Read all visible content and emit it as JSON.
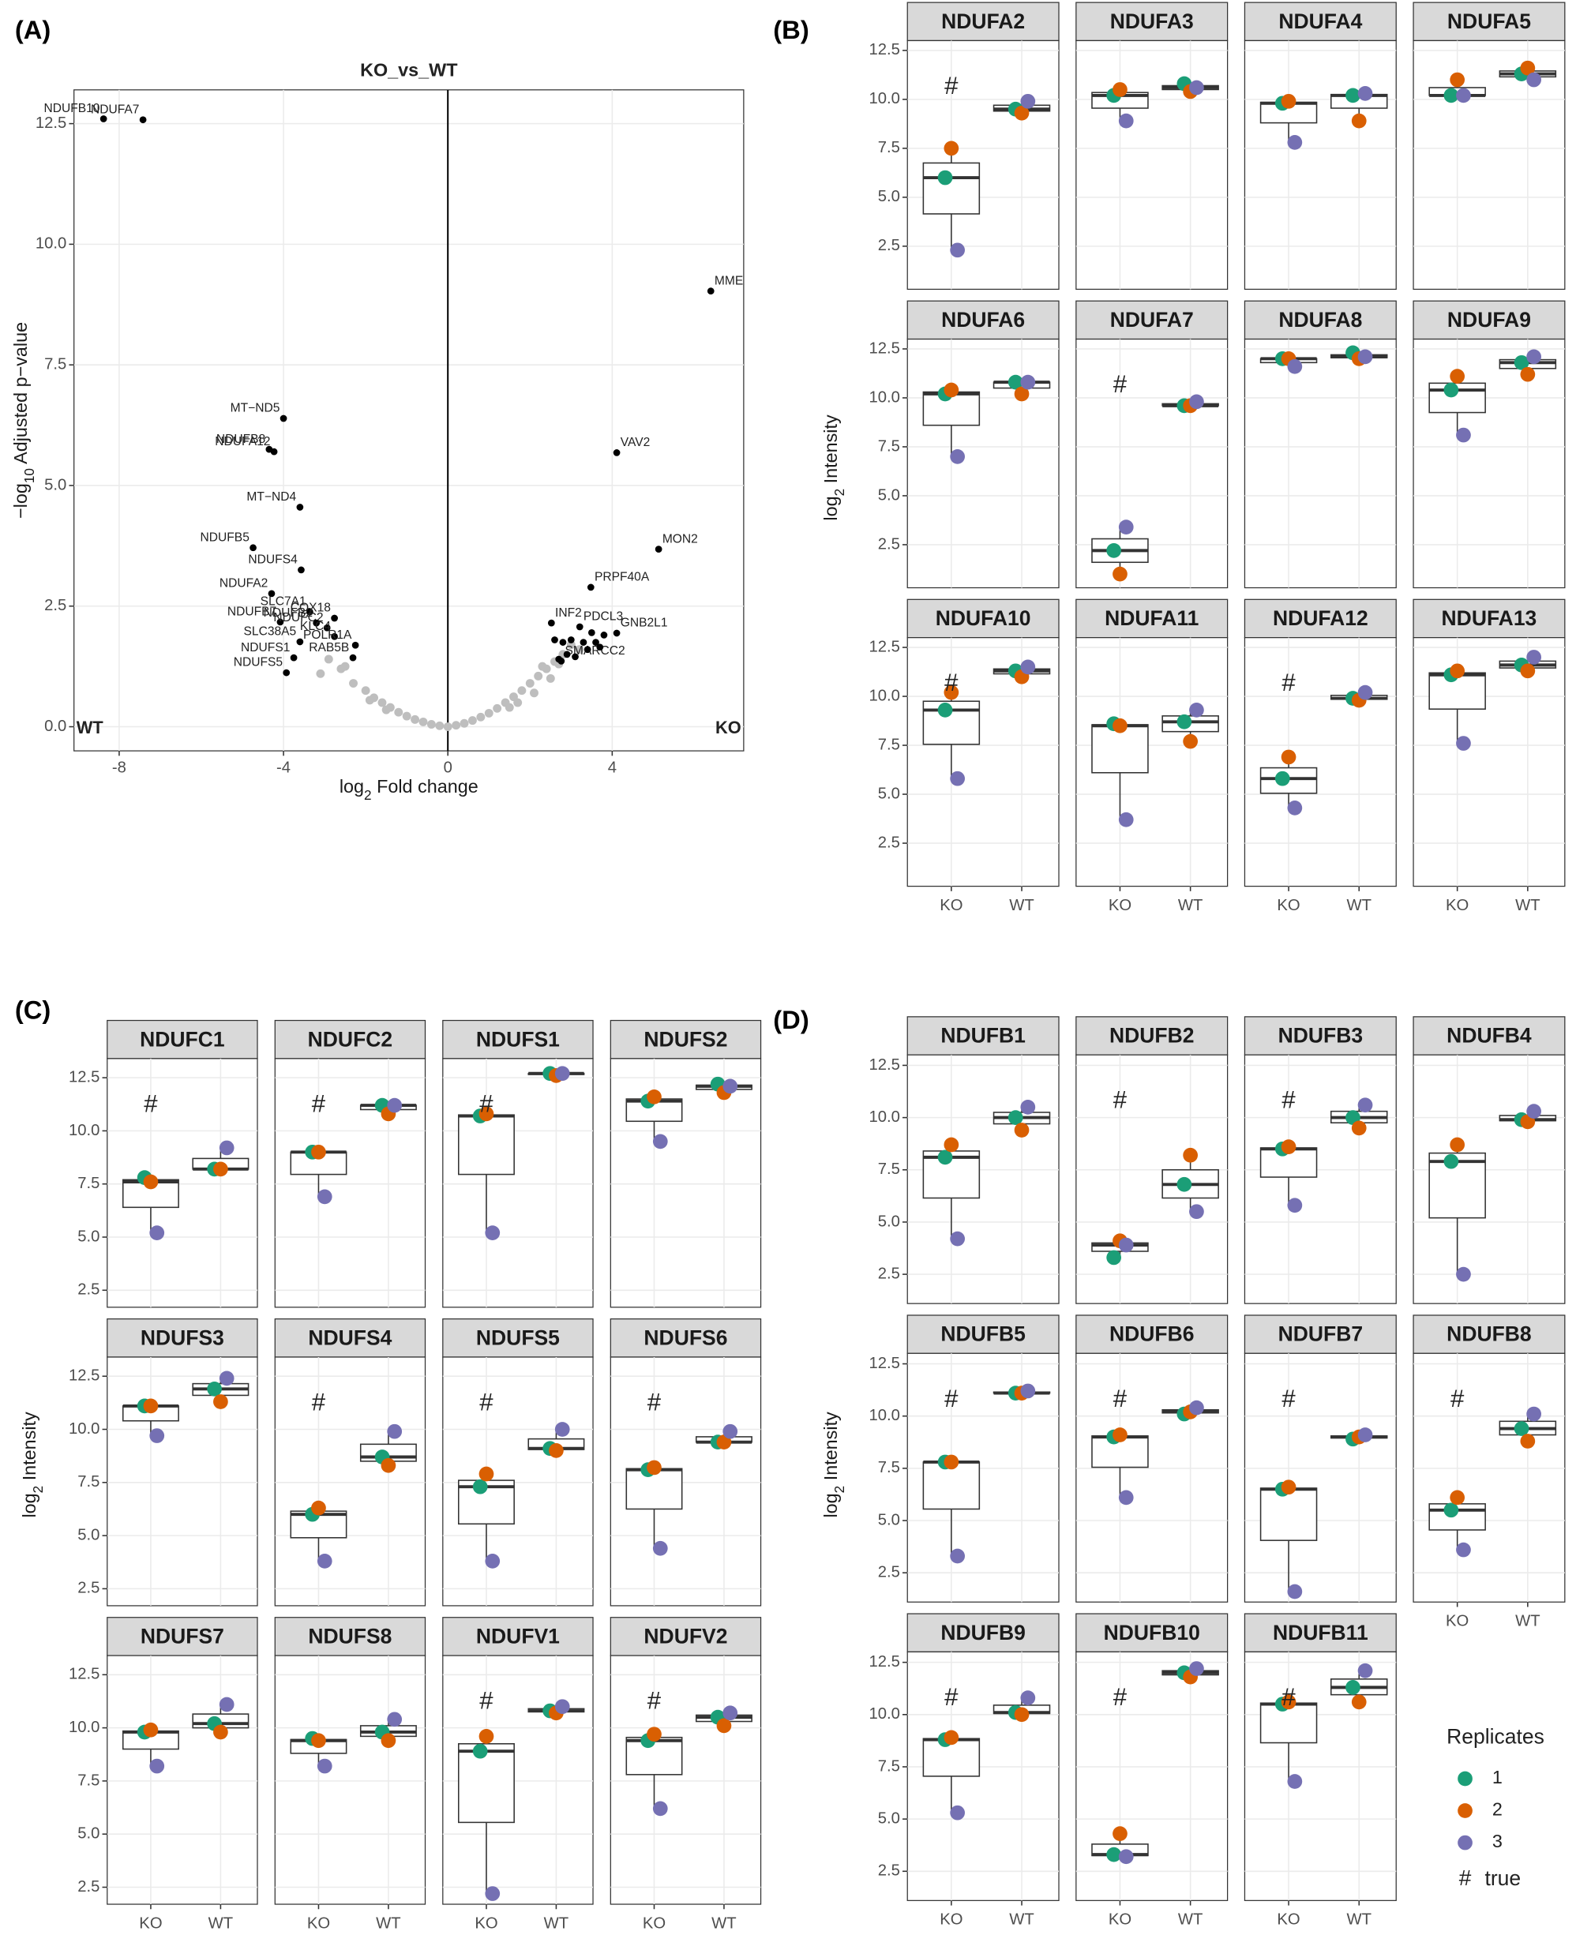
{
  "replicates": {
    "title": "Replicates",
    "names": [
      "1",
      "2",
      "3"
    ],
    "colors": [
      "#1b9e77",
      "#d95f02",
      "#7570b3"
    ],
    "hash": "#",
    "hash_label": "true",
    "hash_color": "#ff0000"
  },
  "chart_data": [
    {
      "type": "scatter",
      "panel_label": "(A)",
      "title": "KO_vs_WT",
      "xlabel": {
        "text": "log",
        "sub": "2",
        "rest": " Fold change"
      },
      "ylabel": {
        "text": "−log",
        "sub": "10",
        "rest": " Adjusted p−value"
      },
      "corner_labels": [
        "WT",
        "KO"
      ],
      "vline": 0,
      "xlim": [
        -9.1,
        7.2
      ],
      "ylim": [
        -0.5,
        13.2
      ],
      "xticks": [
        -8,
        -4,
        0,
        4
      ],
      "yticks": [
        {
          "value": 0,
          "label": "0.0"
        },
        2.5,
        {
          "value": 5,
          "label": "5.0"
        },
        7.5,
        {
          "value": 10,
          "label": "10.0"
        },
        12.5
      ],
      "grid": true,
      "series": [
        {
          "color": "#bebebe",
          "x": [
            -3.1,
            -2.9,
            -2.6,
            -2.5,
            -2.3,
            -2.0,
            -1.9,
            -1.8,
            -1.6,
            -1.5,
            -1.4,
            -1.2,
            -1.0,
            -0.8,
            -0.6,
            -0.4,
            -0.2,
            0.0,
            0.2,
            0.4,
            0.6,
            0.8,
            1.0,
            1.2,
            1.4,
            1.5,
            1.6,
            1.7,
            1.8,
            2.0,
            2.1,
            2.2,
            2.3,
            2.4,
            2.5,
            2.6,
            2.7,
            2.8,
            3.0,
            3.2
          ],
          "values": [
            1.1,
            1.4,
            1.2,
            1.25,
            0.9,
            0.75,
            0.55,
            0.6,
            0.5,
            0.35,
            0.4,
            0.3,
            0.22,
            0.15,
            0.1,
            0.05,
            0.02,
            0.0,
            0.03,
            0.07,
            0.13,
            0.2,
            0.28,
            0.38,
            0.5,
            0.4,
            0.62,
            0.5,
            0.75,
            0.9,
            0.7,
            1.05,
            1.25,
            1.2,
            1.0,
            1.35,
            1.3,
            1.5,
            1.7,
            1.6
          ]
        },
        {
          "color": "#000000",
          "labels": [
            "NDUFB10",
            "NDUFA7",
            "MME",
            "MT−ND5",
            "NDUFB8",
            "NDUFA12",
            "VAV2",
            "MT−ND4",
            "NDUFB5",
            "MON2",
            "NDUFS4",
            "NDUFA2",
            "PRPF40A",
            "SLC7A1",
            "COX18",
            "NDUFB7",
            "NDUFC2",
            "NDUFB2",
            "PDCL3",
            "INF2",
            "GNB2L1",
            "SLC38A5",
            "KLC4",
            "POLR1A",
            "NDUFS1",
            "RAB5B",
            "NDUFS5",
            "SMARCC2",
            null,
            null,
            null,
            null,
            null,
            null,
            null,
            null,
            null,
            null,
            null,
            null
          ],
          "x": [
            -8.38,
            -7.42,
            6.4,
            -4.0,
            -4.35,
            -4.23,
            4.11,
            -3.6,
            -4.74,
            5.13,
            -3.57,
            -4.29,
            3.48,
            -3.36,
            -2.76,
            -4.08,
            -2.94,
            -3.2,
            3.21,
            2.52,
            4.11,
            -3.6,
            -2.76,
            -2.25,
            -3.75,
            -2.31,
            -3.93,
            2.76,
            2.6,
            2.8,
            3.0,
            3.3,
            3.6,
            3.8,
            3.7,
            3.4,
            2.9,
            3.1,
            2.7,
            3.5
          ],
          "values": [
            12.6,
            12.58,
            9.03,
            6.39,
            5.75,
            5.7,
            5.68,
            4.55,
            3.71,
            3.68,
            3.25,
            2.76,
            2.89,
            2.38,
            2.25,
            2.17,
            2.05,
            2.15,
            2.07,
            2.15,
            1.94,
            1.76,
            1.87,
            1.69,
            1.43,
            1.43,
            1.12,
            1.36,
            1.8,
            1.75,
            1.8,
            1.75,
            1.75,
            1.9,
            1.65,
            1.6,
            1.5,
            1.45,
            1.4,
            1.95
          ]
        }
      ]
    },
    {
      "type": "box",
      "panel_label": "(B)",
      "ylabel": {
        "text": "log",
        "sub": "2",
        "rest": " Intensity"
      },
      "categories": [
        "KO",
        "WT"
      ],
      "ylim": [
        0.3,
        13.0
      ],
      "yticks": [
        2.5,
        {
          "value": 5,
          "label": "5.0"
        },
        7.5,
        {
          "value": 10,
          "label": "10.0"
        },
        12.5
      ],
      "grid": true,
      "facets": [
        {
          "title": "NDUFA2",
          "hash": true,
          "groups": [
            [
              6.0,
              7.5,
              2.3
            ],
            [
              9.5,
              9.3,
              9.9
            ]
          ]
        },
        {
          "title": "NDUFA3",
          "hash": false,
          "groups": [
            [
              10.2,
              10.5,
              8.9
            ],
            [
              10.8,
              10.4,
              10.6
            ]
          ]
        },
        {
          "title": "NDUFA4",
          "hash": false,
          "groups": [
            [
              9.8,
              9.9,
              7.8
            ],
            [
              10.2,
              8.9,
              10.3
            ]
          ]
        },
        {
          "title": "NDUFA5",
          "hash": false,
          "groups": [
            [
              10.2,
              11.0,
              10.2
            ],
            [
              11.3,
              11.6,
              11.0
            ]
          ]
        },
        {
          "title": "NDUFA6",
          "hash": false,
          "groups": [
            [
              10.2,
              10.4,
              7.0
            ],
            [
              10.8,
              10.2,
              10.8
            ]
          ]
        },
        {
          "title": "NDUFA7",
          "hash": true,
          "groups": [
            [
              2.2,
              1.0,
              3.4
            ],
            [
              9.6,
              9.6,
              9.8
            ]
          ]
        },
        {
          "title": "NDUFA8",
          "hash": false,
          "groups": [
            [
              12.0,
              12.0,
              11.6
            ],
            [
              12.3,
              12.0,
              12.1
            ]
          ]
        },
        {
          "title": "NDUFA9",
          "hash": false,
          "groups": [
            [
              10.4,
              11.1,
              8.1
            ],
            [
              11.8,
              11.2,
              12.1
            ]
          ]
        },
        {
          "title": "NDUFA10",
          "hash": true,
          "groups": [
            [
              9.3,
              10.2,
              5.8
            ],
            [
              11.3,
              11.0,
              11.5
            ]
          ]
        },
        {
          "title": "NDUFA11",
          "hash": false,
          "groups": [
            [
              8.6,
              8.5,
              3.7
            ],
            [
              8.7,
              7.7,
              9.3
            ]
          ]
        },
        {
          "title": "NDUFA12",
          "hash": true,
          "groups": [
            [
              5.8,
              6.9,
              4.3
            ],
            [
              9.9,
              9.8,
              10.2
            ]
          ]
        },
        {
          "title": "NDUFA13",
          "hash": false,
          "groups": [
            [
              11.1,
              11.3,
              7.6
            ],
            [
              11.6,
              11.3,
              12.0
            ]
          ]
        }
      ]
    },
    {
      "type": "box",
      "panel_label": "(C)",
      "ylabel": {
        "text": "log",
        "sub": "2",
        "rest": " Intensity"
      },
      "categories": [
        "KO",
        "WT"
      ],
      "ylim": [
        1.7,
        13.4
      ],
      "yticks": [
        2.5,
        {
          "value": 5,
          "label": "5.0"
        },
        7.5,
        {
          "value": 10,
          "label": "10.0"
        },
        12.5
      ],
      "grid": true,
      "facets": [
        {
          "title": "NDUFC1",
          "hash": true,
          "groups": [
            [
              7.8,
              7.6,
              5.2
            ],
            [
              8.2,
              8.2,
              9.2
            ]
          ]
        },
        {
          "title": "NDUFC2",
          "hash": true,
          "groups": [
            [
              9.0,
              9.0,
              6.9
            ],
            [
              11.2,
              10.8,
              11.2
            ]
          ]
        },
        {
          "title": "NDUFS1",
          "hash": true,
          "groups": [
            [
              10.7,
              10.8,
              5.2
            ],
            [
              12.7,
              12.6,
              12.7
            ]
          ]
        },
        {
          "title": "NDUFS2",
          "hash": false,
          "groups": [
            [
              11.4,
              11.6,
              9.5
            ],
            [
              12.2,
              11.8,
              12.1
            ]
          ]
        },
        {
          "title": "NDUFS3",
          "hash": false,
          "groups": [
            [
              11.1,
              11.1,
              9.7
            ],
            [
              11.9,
              11.3,
              12.4
            ]
          ]
        },
        {
          "title": "NDUFS4",
          "hash": true,
          "groups": [
            [
              6.0,
              6.3,
              3.8
            ],
            [
              8.7,
              8.3,
              9.9
            ]
          ]
        },
        {
          "title": "NDUFS5",
          "hash": true,
          "groups": [
            [
              7.3,
              7.9,
              3.8
            ],
            [
              9.1,
              9.0,
              10.0
            ]
          ]
        },
        {
          "title": "NDUFS6",
          "hash": true,
          "groups": [
            [
              8.1,
              8.2,
              4.4
            ],
            [
              9.4,
              9.4,
              9.9
            ]
          ]
        },
        {
          "title": "NDUFS7",
          "hash": false,
          "groups": [
            [
              9.8,
              9.9,
              8.2
            ],
            [
              10.2,
              9.8,
              11.1
            ]
          ]
        },
        {
          "title": "NDUFS8",
          "hash": false,
          "groups": [
            [
              9.5,
              9.4,
              8.2
            ],
            [
              9.8,
              9.4,
              10.4
            ]
          ]
        },
        {
          "title": "NDUFV1",
          "hash": true,
          "groups": [
            [
              8.9,
              9.6,
              2.2
            ],
            [
              10.8,
              10.7,
              11.0
            ]
          ]
        },
        {
          "title": "NDUFV2",
          "hash": true,
          "groups": [
            [
              9.4,
              9.7,
              6.2
            ],
            [
              10.5,
              10.1,
              10.7
            ]
          ]
        }
      ]
    },
    {
      "type": "box",
      "panel_label": "(D)",
      "ylabel": {
        "text": "log",
        "sub": "2",
        "rest": " Intensity"
      },
      "categories": [
        "KO",
        "WT"
      ],
      "ylim": [
        1.1,
        13.0
      ],
      "yticks": [
        2.5,
        {
          "value": 5,
          "label": "5.0"
        },
        7.5,
        {
          "value": 10,
          "label": "10.0"
        },
        12.5
      ],
      "grid": true,
      "facets": [
        {
          "title": "NDUFB1",
          "hash": false,
          "groups": [
            [
              8.1,
              8.7,
              4.2
            ],
            [
              10.0,
              9.4,
              10.5
            ]
          ]
        },
        {
          "title": "NDUFB2",
          "hash": true,
          "groups": [
            [
              3.3,
              4.1,
              3.9
            ],
            [
              6.8,
              8.2,
              5.5
            ]
          ]
        },
        {
          "title": "NDUFB3",
          "hash": true,
          "groups": [
            [
              8.5,
              8.6,
              5.8
            ],
            [
              10.0,
              9.5,
              10.6
            ]
          ]
        },
        {
          "title": "NDUFB4",
          "hash": false,
          "groups": [
            [
              7.9,
              8.7,
              2.5
            ],
            [
              9.9,
              9.8,
              10.3
            ]
          ]
        },
        {
          "title": "NDUFB5",
          "hash": true,
          "groups": [
            [
              7.8,
              7.8,
              3.3
            ],
            [
              11.1,
              11.1,
              11.2
            ]
          ]
        },
        {
          "title": "NDUFB6",
          "hash": true,
          "groups": [
            [
              9.0,
              9.1,
              6.1
            ],
            [
              10.1,
              10.2,
              10.4
            ]
          ]
        },
        {
          "title": "NDUFB7",
          "hash": true,
          "groups": [
            [
              6.5,
              6.6,
              1.6
            ],
            [
              8.9,
              9.0,
              9.1
            ]
          ]
        },
        {
          "title": "NDUFB8",
          "hash": true,
          "groups": [
            [
              5.5,
              6.1,
              3.6
            ],
            [
              9.4,
              8.8,
              10.1
            ]
          ]
        },
        {
          "title": "NDUFB9",
          "hash": true,
          "groups": [
            [
              8.8,
              8.9,
              5.3
            ],
            [
              10.1,
              10.0,
              10.8
            ]
          ]
        },
        {
          "title": "NDUFB10",
          "hash": true,
          "groups": [
            [
              3.3,
              4.3,
              3.2
            ],
            [
              12.0,
              11.8,
              12.2
            ]
          ]
        },
        {
          "title": "NDUFB11",
          "hash": true,
          "groups": [
            [
              10.5,
              10.6,
              6.8
            ],
            [
              11.3,
              10.6,
              12.1
            ]
          ]
        }
      ]
    }
  ]
}
